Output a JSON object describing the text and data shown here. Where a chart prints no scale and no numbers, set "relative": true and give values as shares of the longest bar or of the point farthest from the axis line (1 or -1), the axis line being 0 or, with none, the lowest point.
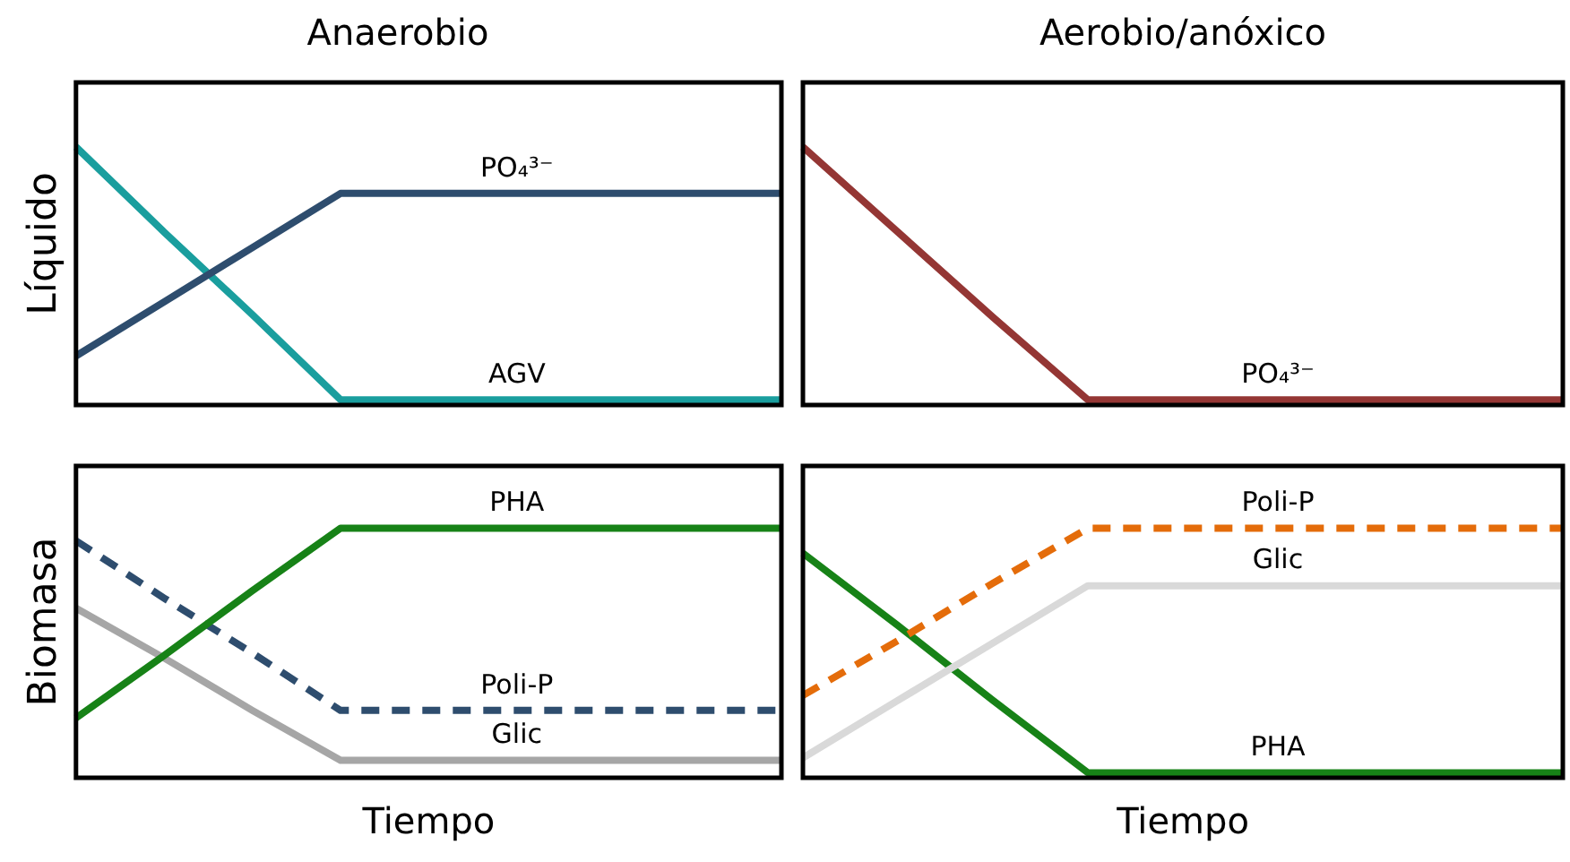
{
  "chart_data": [
    {
      "type": "line",
      "title": "Anaerobio",
      "ylabel": "Líquido",
      "relative": true,
      "tick_labels": false,
      "legend": false,
      "marker": "none",
      "categories": [
        null,
        null,
        null,
        null,
        null,
        null,
        null,
        null,
        null
      ],
      "series": [
        {
          "name": "PO₄³⁻",
          "color": "#2e4d6e",
          "values": [
            0.19,
            0.4,
            0.61,
            0.82,
            0.82,
            0.82,
            0.82,
            0.82,
            0.82
          ]
        },
        {
          "name": "AGV",
          "color": "#1a9e9e",
          "values": [
            1,
            0.67,
            0.35,
            0.02,
            0.02,
            0.02,
            0.02,
            0.02,
            0.02
          ]
        }
      ]
    },
    {
      "type": "line",
      "title": "Aerobio/anóxico",
      "relative": true,
      "tick_labels": false,
      "legend": false,
      "marker": "none",
      "categories": [
        null,
        null,
        null,
        null,
        null,
        null,
        null,
        null,
        null
      ],
      "series": [
        {
          "name": "PO₄³⁻",
          "color": "#943634",
          "values": [
            1,
            0.67,
            0.34,
            0.02,
            0.02,
            0.02,
            0.02,
            0.02,
            0.02
          ]
        }
      ]
    },
    {
      "type": "line",
      "ylabel": "Biomasa",
      "xlabel": "Tiempo",
      "relative": true,
      "tick_labels": false,
      "legend": false,
      "marker": "none",
      "categories": [
        null,
        null,
        null,
        null,
        null,
        null,
        null,
        null,
        null
      ],
      "series": [
        {
          "name": "PHA",
          "color": "#178217",
          "values": [
            0.24,
            0.49,
            0.75,
            1,
            1,
            1,
            1,
            1,
            1
          ]
        },
        {
          "name": "Poli-P",
          "color": "#2e4d6e",
          "line_style": "dashed",
          "values": [
            0.95,
            0.72,
            0.5,
            0.27,
            0.27,
            0.27,
            0.27,
            0.27,
            0.27
          ]
        },
        {
          "name": "Glic",
          "color": "#a6a6a6",
          "values": [
            0.68,
            0.48,
            0.27,
            0.07,
            0.07,
            0.07,
            0.07,
            0.07,
            0.07
          ]
        }
      ]
    },
    {
      "type": "line",
      "xlabel": "Tiempo",
      "relative": true,
      "tick_labels": false,
      "legend": false,
      "marker": "none",
      "categories": [
        null,
        null,
        null,
        null,
        null,
        null,
        null,
        null,
        null
      ],
      "series": [
        {
          "name": "Poli-P",
          "color": "#e46c0a",
          "line_style": "dashed",
          "values": [
            0.33,
            0.55,
            0.78,
            1,
            1,
            1,
            1,
            1,
            1
          ]
        },
        {
          "name": "Glic",
          "color": "#d9d9d9",
          "values": [
            0.08,
            0.31,
            0.54,
            0.77,
            0.77,
            0.77,
            0.77,
            0.77,
            0.77
          ]
        },
        {
          "name": "PHA",
          "color": "#178217",
          "values": [
            0.9,
            0.61,
            0.31,
            0.02,
            0.02,
            0.02,
            0.02,
            0.02,
            0.02
          ]
        }
      ]
    }
  ]
}
